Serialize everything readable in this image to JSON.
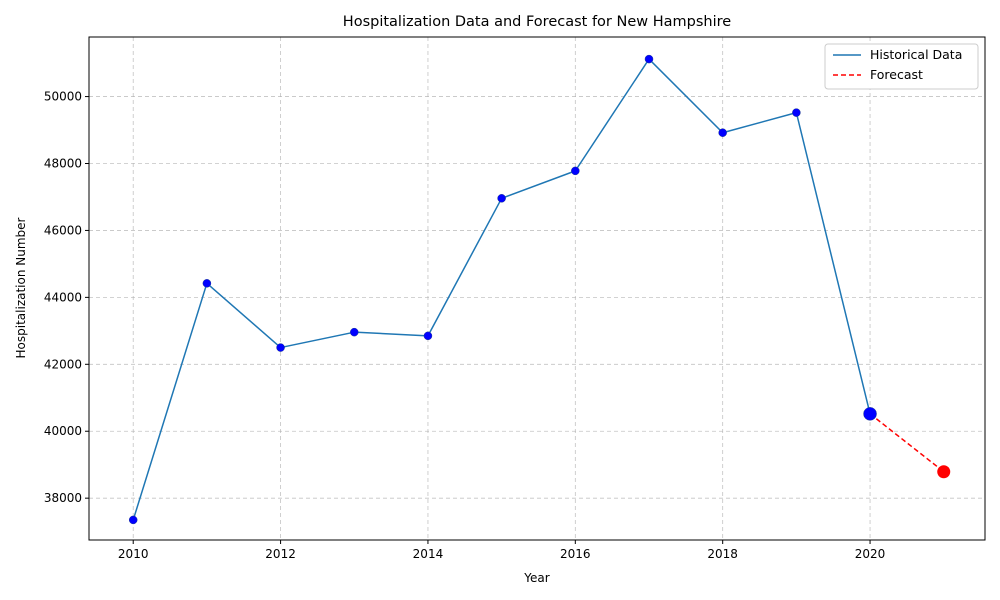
{
  "chart_data": {
    "type": "line",
    "title": "Hospitalization Data and Forecast for New Hampshire",
    "xlabel": "Year",
    "ylabel": "Hospitalization Number",
    "xlim": [
      2009.4,
      2021.56
    ],
    "ylim": [
      36750,
      51780
    ],
    "xticks": [
      2010,
      2012,
      2014,
      2016,
      2018,
      2020
    ],
    "yticks": [
      38000,
      40000,
      42000,
      44000,
      46000,
      48000,
      50000
    ],
    "grid": true,
    "legend_position": "top-right",
    "series": [
      {
        "name": "Historical Data",
        "style": "solid",
        "color": "#1f77b4",
        "marker_color": "#0000ff",
        "x": [
          2010,
          2011,
          2012,
          2013,
          2014,
          2015,
          2016,
          2017,
          2018,
          2019,
          2020
        ],
        "y": [
          37350,
          44420,
          42500,
          42960,
          42850,
          46960,
          47780,
          51120,
          48920,
          49520,
          40520
        ]
      },
      {
        "name": "Forecast",
        "style": "dashed",
        "color": "#ff0000",
        "marker_color": "#ff0000",
        "x": [
          2020,
          2021
        ],
        "y": [
          40520,
          38790
        ]
      }
    ]
  }
}
